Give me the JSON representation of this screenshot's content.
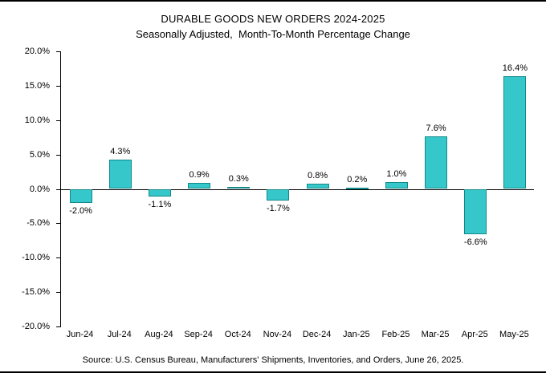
{
  "chart_data": {
    "type": "bar",
    "title": "DURABLE GOODS NEW ORDERS 2024-2025",
    "subtitle": "Seasonally Adjusted,  Month-To-Month Percentage Change",
    "categories": [
      "Jun-24",
      "Jul-24",
      "Aug-24",
      "Sep-24",
      "Oct-24",
      "Nov-24",
      "Dec-24",
      "Jan-25",
      "Feb-25",
      "Mar-25",
      "Apr-25",
      "May-25"
    ],
    "values": [
      -2.0,
      4.3,
      -1.1,
      0.9,
      0.3,
      -1.7,
      0.8,
      0.2,
      1.0,
      7.6,
      -6.6,
      16.4
    ],
    "value_labels": [
      "-2.0%",
      "4.3%",
      "-1.1%",
      "0.9%",
      "0.3%",
      "-1.7%",
      "0.8%",
      "0.2%",
      "1.0%",
      "7.6%",
      "-6.6%",
      "16.4%"
    ],
    "xlabel": "",
    "ylabel": "",
    "ylim": [
      -20,
      20
    ],
    "ytick_values": [
      20,
      15,
      10,
      5,
      0,
      -5,
      -10,
      -15,
      -20
    ],
    "ytick_labels": [
      "20.0%",
      "15.0%",
      "10.0%",
      "5.0%",
      "0.0%",
      "-5.0%",
      "-10.0%",
      "-15.0%",
      "-20.0%"
    ],
    "grid": false,
    "legend": "none",
    "source": "Source: U.S. Census Bureau, Manufacturers' Shipments, Inventories, and Orders, June 26, 2025.",
    "colors": {
      "bar_fill": "#35C7C9",
      "bar_border": "#13898B",
      "axis": "#000000",
      "text": "#000000"
    }
  }
}
